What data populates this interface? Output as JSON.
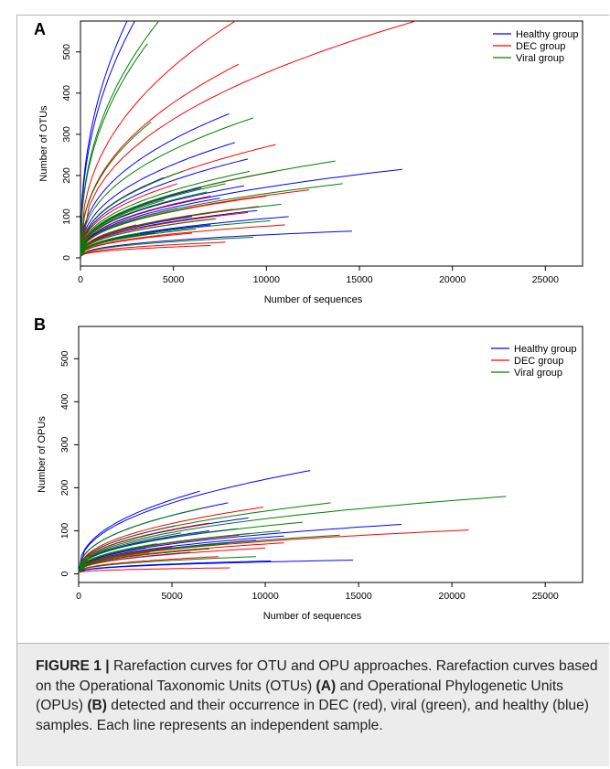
{
  "chart_data": [
    {
      "panel": "A",
      "type": "line",
      "xlabel": "Number of sequences",
      "ylabel": "Number of OTUs",
      "xlim": [
        0,
        27000
      ],
      "ylim": [
        -20,
        575
      ],
      "xticks": [
        0,
        5000,
        10000,
        15000,
        20000,
        25000
      ],
      "yticks": [
        0,
        100,
        200,
        300,
        400,
        500
      ],
      "legend": {
        "position": "top-right",
        "entries": [
          {
            "name": "Healthy group",
            "color": "#0000ff"
          },
          {
            "name": "DEC group",
            "color": "#ff0000"
          },
          {
            "name": "Viral group",
            "color": "#008000"
          }
        ]
      },
      "series": [
        {
          "group": "Healthy group",
          "curves": [
            [
              3500,
              620
            ],
            [
              3000,
              620
            ],
            [
              8000,
              350
            ],
            [
              9000,
              240
            ],
            [
              8300,
              280
            ],
            [
              17300,
              215
            ],
            [
              11200,
              100
            ],
            [
              14600,
              65
            ],
            [
              9500,
              115
            ],
            [
              6500,
              170
            ],
            [
              4500,
              195
            ],
            [
              7500,
              145
            ],
            [
              8800,
              175
            ],
            [
              3800,
              180
            ],
            [
              6000,
              100
            ],
            [
              5200,
              120
            ],
            [
              7000,
              80
            ],
            [
              4000,
              60
            ]
          ]
        },
        {
          "group": "DEC group",
          "curves": [
            [
              8500,
              470
            ],
            [
              8500,
              580
            ],
            [
              18400,
              580
            ],
            [
              10500,
              275
            ],
            [
              12300,
              165
            ],
            [
              10500,
              210
            ],
            [
              7800,
              38
            ],
            [
              7000,
              30
            ],
            [
              7200,
              95
            ],
            [
              9600,
              125
            ],
            [
              8200,
              118
            ],
            [
              7000,
              150
            ],
            [
              5200,
              180
            ],
            [
              10000,
              150
            ],
            [
              3000,
              80
            ],
            [
              6000,
              60
            ],
            [
              11000,
              80
            ],
            [
              9000,
              110
            ]
          ]
        },
        {
          "group": "Viral group",
          "curves": [
            [
              4300,
              580
            ],
            [
              3600,
              520
            ],
            [
              3800,
              330
            ],
            [
              9300,
              340
            ],
            [
              13700,
              235
            ],
            [
              14100,
              180
            ],
            [
              10200,
              90
            ],
            [
              9100,
              210
            ],
            [
              6800,
              160
            ],
            [
              5800,
              120
            ],
            [
              7300,
              95
            ],
            [
              9300,
              50
            ],
            [
              4500,
              140
            ],
            [
              5500,
              210
            ],
            [
              10800,
              130
            ],
            [
              3200,
              60
            ],
            [
              7800,
              180
            ],
            [
              6200,
              70
            ]
          ]
        }
      ]
    },
    {
      "panel": "B",
      "type": "line",
      "xlabel": "Number of sequences",
      "ylabel": "Number of OPUs",
      "xlim": [
        0,
        27000
      ],
      "ylim": [
        -20,
        575
      ],
      "xticks": [
        0,
        5000,
        10000,
        15000,
        20000,
        25000
      ],
      "yticks": [
        0,
        100,
        200,
        300,
        400,
        500
      ],
      "legend": {
        "position": "top-right",
        "entries": [
          {
            "name": "Healthy group",
            "color": "#0000ff"
          },
          {
            "name": "DEC group",
            "color": "#ff0000"
          },
          {
            "name": "Viral group",
            "color": "#008000"
          }
        ]
      },
      "series": [
        {
          "group": "Healthy group",
          "curves": [
            [
              12400,
              240
            ],
            [
              6500,
              192
            ],
            [
              8000,
              165
            ],
            [
              9100,
              130
            ],
            [
              17300,
              115
            ],
            [
              10300,
              30
            ],
            [
              14700,
              32
            ],
            [
              9500,
              78
            ],
            [
              7000,
              100
            ],
            [
              5200,
              112
            ],
            [
              11000,
              88
            ],
            [
              6000,
              50
            ],
            [
              3600,
              60
            ],
            [
              8500,
              105
            ]
          ]
        },
        {
          "group": "DEC group",
          "curves": [
            [
              20900,
              102
            ],
            [
              9900,
              155
            ],
            [
              7000,
              118
            ],
            [
              8100,
              14
            ],
            [
              8600,
              90
            ],
            [
              9200,
              94
            ],
            [
              5000,
              62
            ],
            [
              7500,
              40
            ],
            [
              11000,
              72
            ],
            [
              6200,
              80
            ],
            [
              3800,
              50
            ],
            [
              10000,
              60
            ]
          ]
        },
        {
          "group": "Viral group",
          "curves": [
            [
              22900,
              180
            ],
            [
              13500,
              165
            ],
            [
              14000,
              90
            ],
            [
              6600,
              152
            ],
            [
              10800,
              100
            ],
            [
              8000,
              70
            ],
            [
              9500,
              40
            ],
            [
              5500,
              95
            ],
            [
              4200,
              70
            ],
            [
              12000,
              120
            ],
            [
              7000,
              58
            ]
          ]
        }
      ]
    }
  ],
  "caption": {
    "label": "FIGURE 1 |",
    "t1": " Rarefaction curves for OTU and OPU approaches. Rarefaction curves based on the Operational Taxonomic Units (OTUs) ",
    "b1": "(A)",
    "t2": " and Operational Phylogenetic Units (OPUs) ",
    "b2": "(B)",
    "t3": " detected and their occurrence in DEC (red), viral (green), and healthy (blue) samples. Each line represents an independent sample."
  }
}
